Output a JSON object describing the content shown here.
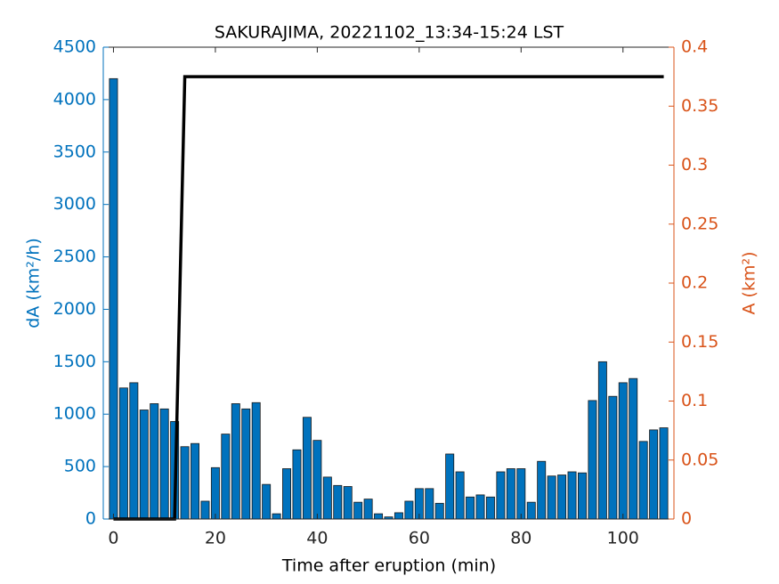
{
  "chart_data": {
    "type": "bar-line",
    "title": "SAKURAJIMA, 20221102_13:34-15:24 LST",
    "xlabel": "Time after eruption (min)",
    "ylabel": "dA (km²/h)",
    "y2label": "A (km²)",
    "xlim": [
      -2,
      110
    ],
    "xticks": [
      0,
      20,
      40,
      60,
      80,
      100
    ],
    "ylim": [
      0,
      4500
    ],
    "yticks": [
      0,
      500,
      1000,
      1500,
      2000,
      2500,
      3000,
      3500,
      4000,
      4500
    ],
    "y2lim": [
      0,
      0.4
    ],
    "y2ticks": [
      0,
      0.05,
      0.1,
      0.15,
      0.2,
      0.25,
      0.3,
      0.35,
      0.4
    ],
    "left_axis_color": "#0072bd",
    "right_axis_color": "#d95319",
    "series": [
      {
        "kind": "bar",
        "color": "#0072bd",
        "x": [
          0,
          2,
          4,
          6,
          8,
          10,
          12,
          14,
          16,
          18,
          20,
          22,
          24,
          26,
          28,
          30,
          32,
          34,
          36,
          38,
          40,
          42,
          44,
          46,
          48,
          50,
          52,
          54,
          56,
          58,
          60,
          62,
          64,
          66,
          68,
          70,
          72,
          74,
          76,
          78,
          80,
          82,
          84,
          86,
          88,
          90,
          92,
          94,
          96,
          98,
          100,
          102,
          104,
          106,
          108
        ],
        "values": [
          4200,
          1250,
          1300,
          1040,
          1100,
          1050,
          930,
          690,
          720,
          170,
          490,
          810,
          1100,
          1050,
          1110,
          330,
          50,
          480,
          660,
          970,
          750,
          400,
          320,
          310,
          160,
          190,
          50,
          20,
          60,
          170,
          290,
          290,
          150,
          620,
          450,
          210,
          230,
          210,
          450,
          480,
          480,
          160,
          550,
          410,
          420,
          450,
          440,
          1130,
          1500,
          1170,
          1300,
          1340,
          740,
          850,
          870
        ]
      },
      {
        "kind": "line",
        "axis": "y2",
        "color": "#000000",
        "x": [
          0,
          12,
          14,
          108
        ],
        "values": [
          0,
          0,
          0.375,
          0.375
        ]
      }
    ]
  }
}
